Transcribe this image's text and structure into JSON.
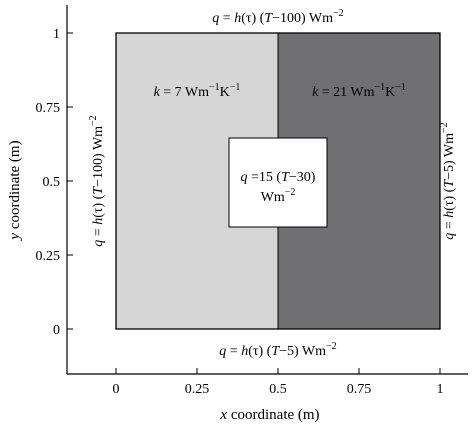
{
  "axes": {
    "x_label_var": "x",
    "x_label_rest": " coordinate (m)",
    "y_label_var": "y",
    "y_label_rest": " coordinate (m)",
    "x_ticks": [
      "0",
      "0.25",
      "0.5",
      "0.75",
      "1"
    ],
    "y_ticks": [
      "1",
      "0.75",
      "0.5",
      "0.25",
      "0"
    ]
  },
  "boundary": {
    "top": {
      "q": "q",
      "eq": " = ",
      "h": "h",
      "tau_open": "(τ) (",
      "T": "T",
      "rest": "−100) Wm",
      "exp": "−2"
    },
    "bottom": {
      "q": "q",
      "eq": " = ",
      "h": "h",
      "tau_open": "(τ) (",
      "T": "T",
      "rest": "−5) Wm",
      "exp": "−2"
    },
    "left": {
      "q": "q",
      "eq": " = ",
      "h": "h",
      "tau_open": "(τ) (",
      "T": "T",
      "rest": "−100) Wm",
      "exp": "−2"
    },
    "right": {
      "q": "q",
      "eq": " = ",
      "h": "h",
      "tau_open": "(τ) (",
      "T": "T",
      "rest": "−5) Wm",
      "exp": "−2"
    }
  },
  "regions": {
    "left": {
      "k": "k",
      "value": " = 7 Wm",
      "exp1": "−1",
      "mid": "K",
      "exp2": "−1",
      "color": "#d6d6d6"
    },
    "right": {
      "k": "k",
      "value": " = 21 Wm",
      "exp1": "−1",
      "mid": "K",
      "exp2": "−1",
      "color": "#707073"
    }
  },
  "center": {
    "q": "q",
    "line1_rest": " =15 (",
    "T": "T",
    "line1_end": "−30)",
    "line2": "Wm",
    "line2_exp": "−2"
  }
}
